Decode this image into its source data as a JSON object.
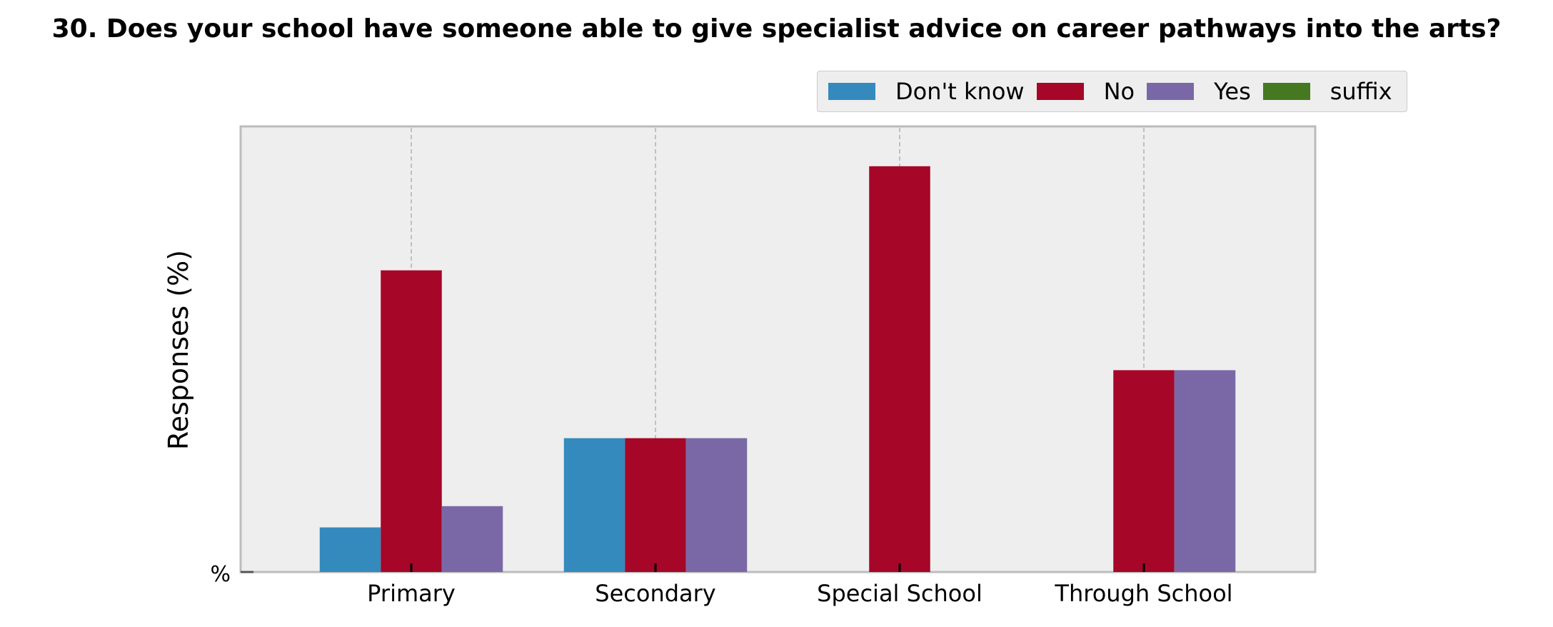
{
  "chart_data": {
    "type": "bar",
    "title": "30. Does your school have someone able to give specialist advice on career pathways into the arts?",
    "xlabel": "",
    "ylabel": "Responses (%)",
    "y_tick_labels": [
      "%"
    ],
    "categories": [
      "Primary",
      "Secondary",
      "Special School",
      "Through School"
    ],
    "series": [
      {
        "name": "Don't know",
        "color": "#348abd",
        "values": [
          10.5,
          31.5,
          0,
          0
        ]
      },
      {
        "name": "No",
        "color": "#a60628",
        "values": [
          71,
          31.5,
          95.5,
          47.5
        ]
      },
      {
        "name": "Yes",
        "color": "#7a68a6",
        "values": [
          15.5,
          31.5,
          0,
          47.5
        ]
      },
      {
        "name": "suffix",
        "color": "#467821",
        "values": [
          0,
          0,
          0,
          0
        ]
      }
    ],
    "ylim": [
      0,
      100
    ],
    "grid": true,
    "legend_position": "top-right"
  }
}
